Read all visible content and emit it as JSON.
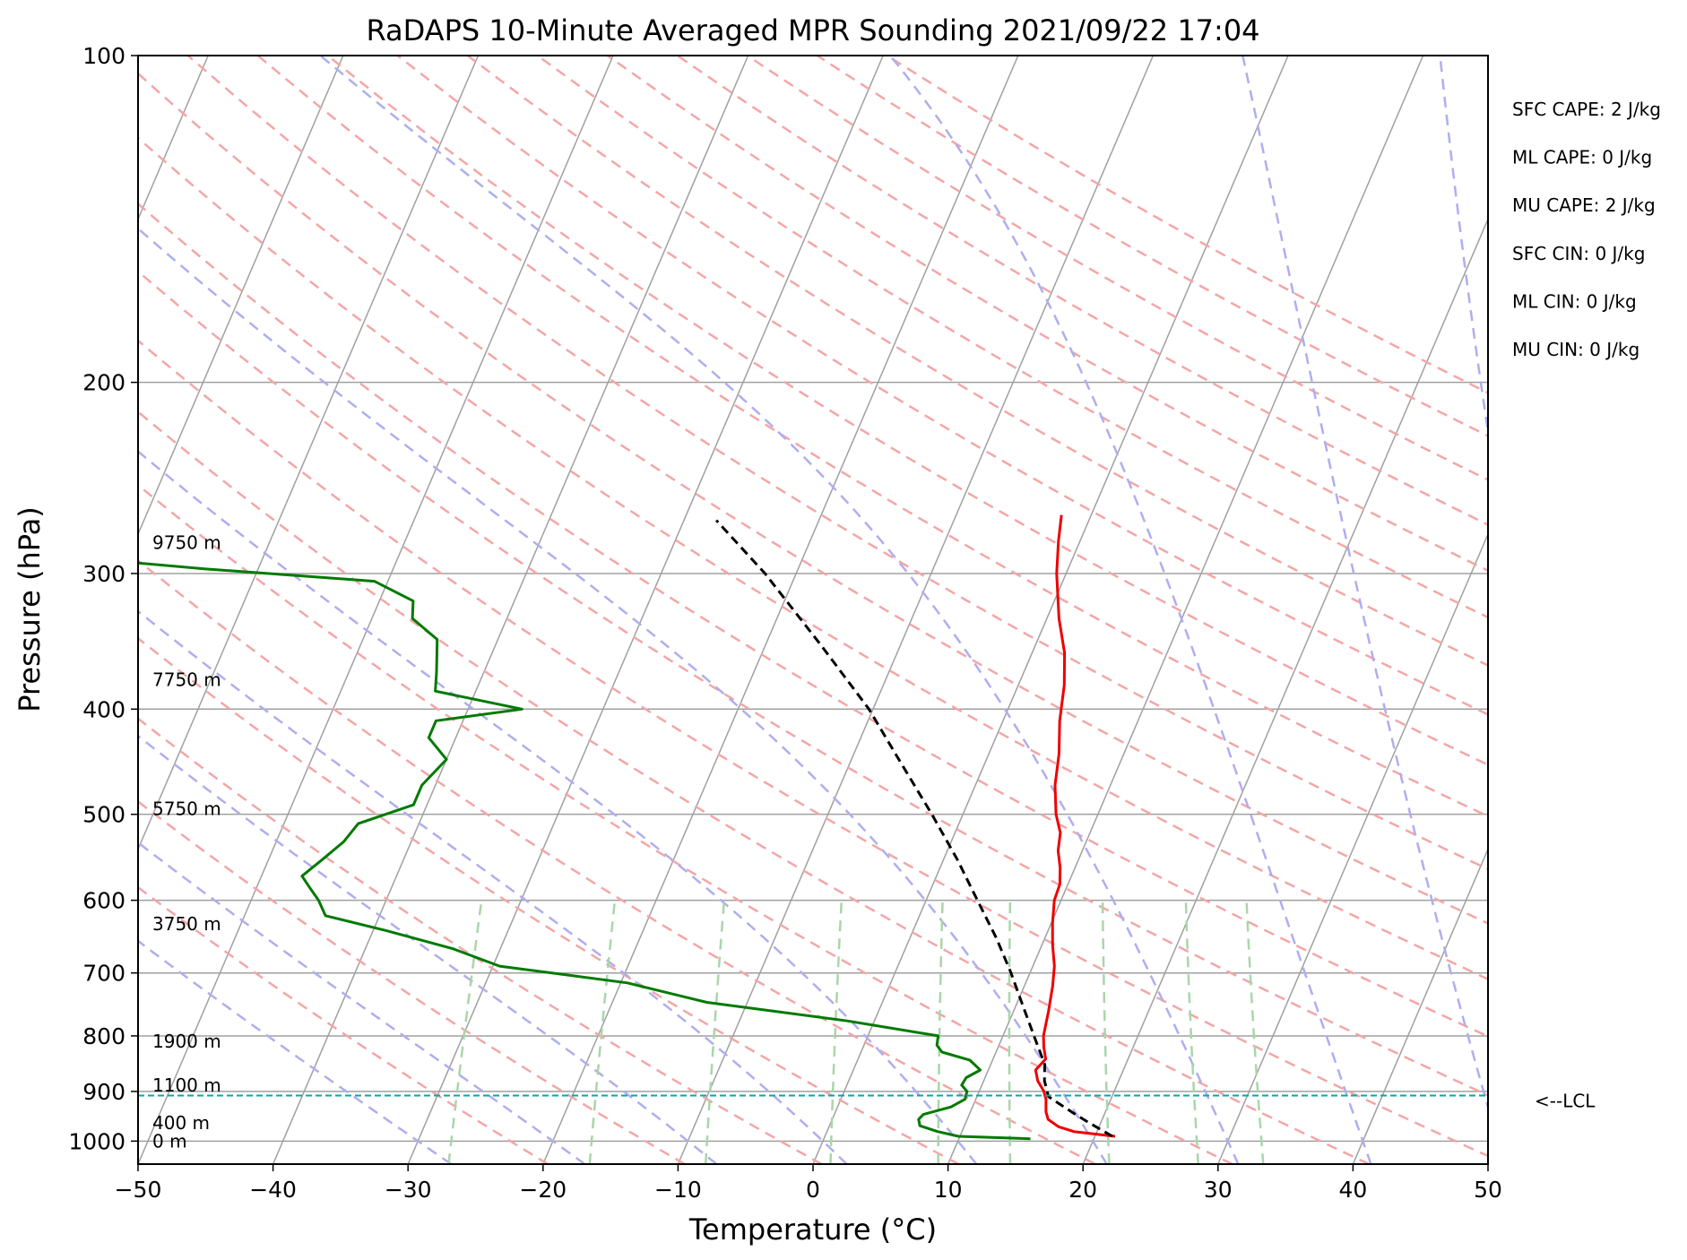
{
  "chart_data": {
    "type": "line",
    "title": "RaDAPS 10-Minute Averaged MPR Sounding 2021/09/22 17:04",
    "xlabel": "Temperature (°C)",
    "ylabel": "Pressure (hPa)",
    "xlim": [
      -50,
      50
    ],
    "ylim": [
      1050,
      100
    ],
    "y_scale": "log",
    "skew": true,
    "x_ticks": [
      "−50",
      "−40",
      "−30",
      "−20",
      "−10",
      "0",
      "10",
      "20",
      "30",
      "40",
      "50"
    ],
    "x_tick_values": [
      -50,
      -40,
      -30,
      -20,
      -10,
      0,
      10,
      20,
      30,
      40,
      50
    ],
    "y_ticks": [
      "100",
      "200",
      "300",
      "400",
      "500",
      "600",
      "700",
      "800",
      "900",
      "1000"
    ],
    "y_tick_values": [
      100,
      200,
      300,
      400,
      500,
      600,
      700,
      800,
      900,
      1000
    ],
    "grid": true,
    "series": [
      {
        "color": "#ee0000",
        "points": [
          [
            990,
            21.5
          ],
          [
            980,
            18.3
          ],
          [
            970,
            17.0
          ],
          [
            955,
            16.0
          ],
          [
            940,
            15.6
          ],
          [
            915,
            15.2
          ],
          [
            900,
            14.8
          ],
          [
            880,
            14.0
          ],
          [
            860,
            13.5
          ],
          [
            840,
            13.9
          ],
          [
            820,
            13.4
          ],
          [
            800,
            13.0
          ],
          [
            760,
            12.6
          ],
          [
            720,
            12.1
          ],
          [
            690,
            11.6
          ],
          [
            660,
            10.8
          ],
          [
            630,
            10.1
          ],
          [
            600,
            9.5
          ],
          [
            580,
            9.4
          ],
          [
            560,
            8.9
          ],
          [
            540,
            8.2
          ],
          [
            520,
            7.8
          ],
          [
            500,
            6.9
          ],
          [
            470,
            5.9
          ],
          [
            440,
            5.2
          ],
          [
            410,
            4.2
          ],
          [
            380,
            3.4
          ],
          [
            355,
            2.4
          ],
          [
            330,
            0.9
          ],
          [
            300,
            -0.7
          ],
          [
            280,
            -1.6
          ],
          [
            265,
            -2.2
          ]
        ]
      },
      {
        "color": "#000000",
        "dashed": true,
        "points": [
          [
            990,
            21.3
          ],
          [
            960,
            19.0
          ],
          [
            940,
            17.5
          ],
          [
            910,
            15.3
          ],
          [
            880,
            14.5
          ],
          [
            850,
            14.0
          ],
          [
            800,
            12.3
          ],
          [
            750,
            10.5
          ],
          [
            700,
            8.6
          ],
          [
            650,
            6.4
          ],
          [
            600,
            3.8
          ],
          [
            550,
            1.0
          ],
          [
            500,
            -2.3
          ],
          [
            440,
            -6.9
          ],
          [
            400,
            -10.3
          ],
          [
            350,
            -15.8
          ],
          [
            300,
            -22.3
          ],
          [
            268,
            -27.6
          ]
        ]
      },
      {
        "color": "#007a00",
        "points": [
          [
            995,
            15.3
          ],
          [
            990,
            9.9
          ],
          [
            980,
            8.2
          ],
          [
            968,
            6.7
          ],
          [
            955,
            6.4
          ],
          [
            945,
            6.6
          ],
          [
            930,
            8.4
          ],
          [
            915,
            9.2
          ],
          [
            900,
            9.1
          ],
          [
            888,
            8.5
          ],
          [
            874,
            8.6
          ],
          [
            860,
            9.4
          ],
          [
            842,
            8.3
          ],
          [
            828,
            6.0
          ],
          [
            816,
            5.4
          ],
          [
            800,
            5.2
          ],
          [
            775,
            -2.0
          ],
          [
            745,
            -13.0
          ],
          [
            715,
            -19.5
          ],
          [
            690,
            -29.5
          ],
          [
            665,
            -33.5
          ],
          [
            640,
            -39.0
          ],
          [
            620,
            -44.0
          ],
          [
            600,
            -45.0
          ],
          [
            585,
            -46.0
          ],
          [
            570,
            -47.0
          ],
          [
            550,
            -46.0
          ],
          [
            530,
            -45.0
          ],
          [
            510,
            -44.5
          ],
          [
            490,
            -41.0
          ],
          [
            470,
            -41.0
          ],
          [
            445,
            -40.0
          ],
          [
            425,
            -42.0
          ],
          [
            410,
            -42.0
          ],
          [
            400,
            -36.0
          ],
          [
            385,
            -43.0
          ],
          [
            370,
            -43.5
          ],
          [
            345,
            -44.5
          ],
          [
            330,
            -47.0
          ],
          [
            318,
            -47.5
          ],
          [
            305,
            -51.0
          ],
          [
            297,
            -64.0
          ],
          [
            290,
            -74.0
          ]
        ]
      }
    ],
    "background_lines": {
      "isotherms_c": [
        -150,
        -140,
        -130,
        -120,
        -110,
        -100,
        -90,
        -80,
        -70,
        -60,
        -50,
        -40,
        -30,
        -20,
        -10,
        0,
        10,
        20,
        30,
        40
      ],
      "dry_adiabats_k": [
        250,
        260,
        270,
        280,
        290,
        300,
        310,
        320,
        330,
        340,
        350,
        360,
        370,
        380,
        390,
        400,
        410,
        420,
        430,
        440,
        450,
        460,
        470
      ],
      "moist_adiabats_c": [
        -30,
        -20,
        -10,
        0,
        10,
        20,
        30,
        40,
        50,
        60
      ],
      "mixing_ratios_gkg": [
        0.4,
        1,
        2,
        4,
        7,
        10,
        16,
        24,
        32
      ]
    },
    "height_labels": [
      {
        "text": "9750 m",
        "p": 281
      },
      {
        "text": "7750 m",
        "p": 376
      },
      {
        "text": "5750 m",
        "p": 494
      },
      {
        "text": "3750 m",
        "p": 631
      },
      {
        "text": "1900 m",
        "p": 809
      },
      {
        "text": "1100 m",
        "p": 888
      },
      {
        "text": "400 m",
        "p": 962
      },
      {
        "text": "0 m",
        "p": 1000
      }
    ],
    "lcl": {
      "pressure": 908,
      "label": "<--LCL",
      "color": "#00aaaa"
    },
    "stats": [
      "SFC CAPE: 2 J/kg",
      "ML CAPE: 0 J/kg",
      "MU CAPE: 2 J/kg",
      "SFC CIN: 0 J/kg",
      "ML CIN: 0 J/kg",
      "MU CIN: 0 J/kg"
    ],
    "colors": {
      "temperature": "#ee0000",
      "dewpoint": "#007a00",
      "parcel": "#000000",
      "dry_adiabat": "#f4a6a6",
      "moist_adiabat": "#aeaef0",
      "mixing_ratio": "#a9d6a9",
      "isotherm": "#a0a0a0",
      "isobar": "#a0a0a0",
      "lcl": "#00aaaa"
    }
  }
}
